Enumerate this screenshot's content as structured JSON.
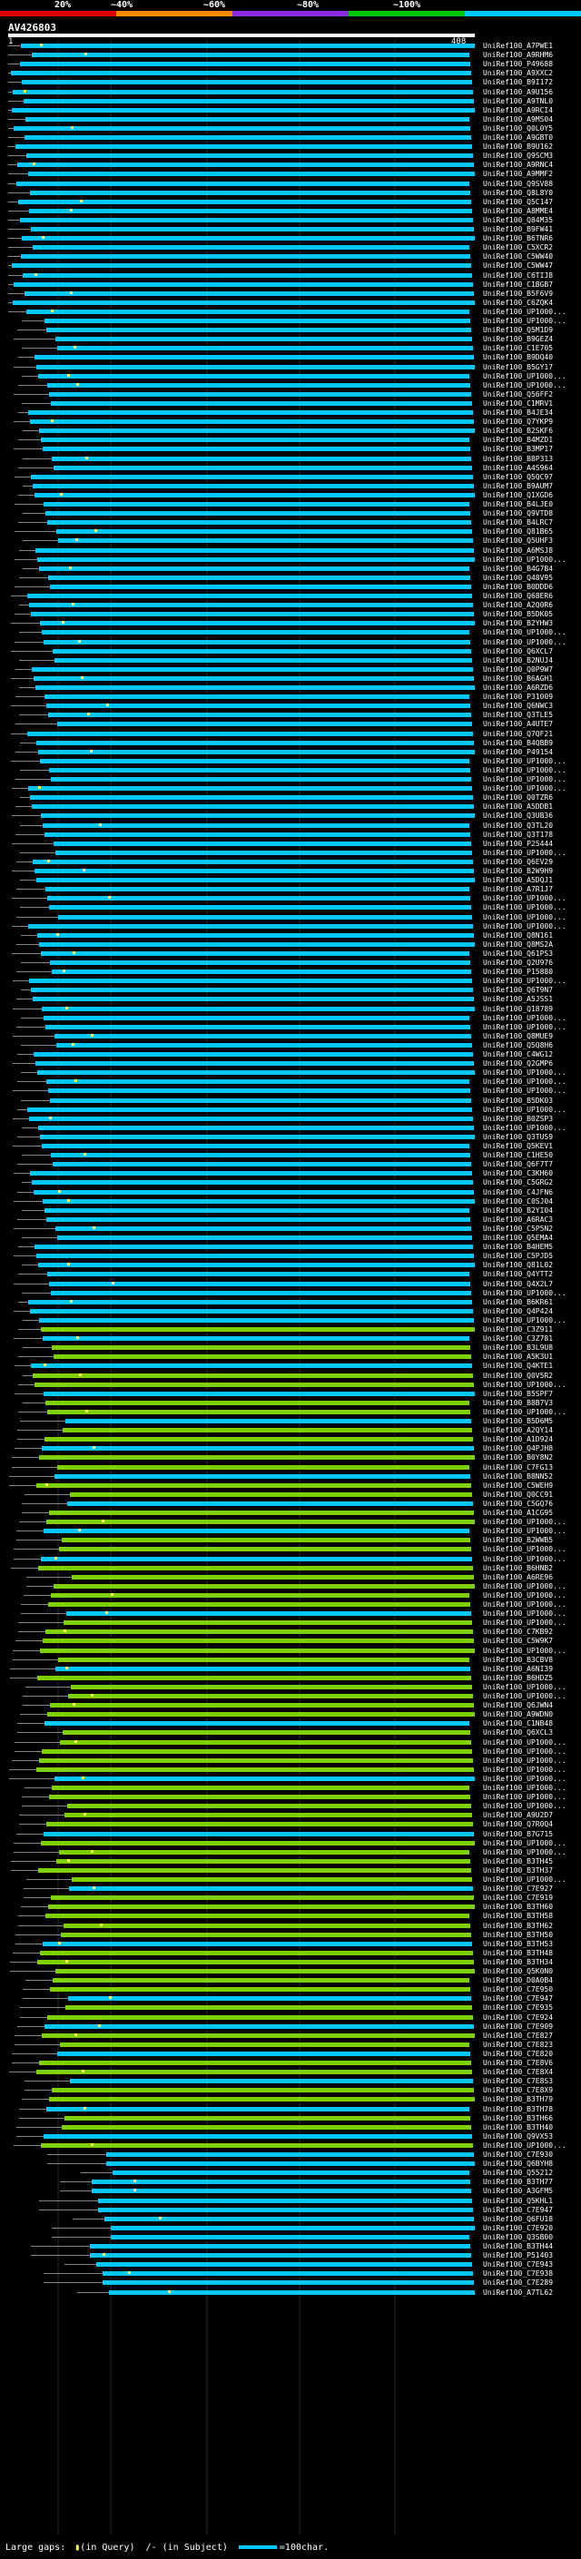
{
  "header": {
    "scale_labels": [
      "20%",
      "~40%",
      "~60%",
      "~80%",
      "~100%"
    ],
    "scale_colors": [
      "#e00000",
      "#ff8c00",
      "#8a2be2",
      "#00c800",
      "#00c8ff"
    ],
    "query_id": "AV426803",
    "query_start": "1",
    "query_end": "408"
  },
  "colors": {
    "cyan": "#00c8ff",
    "green": "#7fd000",
    "line": "#888888",
    "dot": "#ffff66"
  },
  "hits": [
    "UniRef100_A7PWE1",
    "UniRef100_A9RHM6",
    "UniRef100_P49688",
    "UniRef100_A9XXC2",
    "UniRef100_B9I172",
    "UniRef100_A9U156",
    "UniRef100_A9TNL0",
    "UniRef100_A9RCI4",
    "UniRef100_A9MS04",
    "UniRef100_Q0L0Y5",
    "UniRef100_A9GBT0",
    "UniRef100_B9U162",
    "UniRef100_Q9SCM3",
    "UniRef100_A9RNC4",
    "UniRef100_A9MMF2",
    "UniRef100_Q9SV88",
    "UniRef100_Q8L8Y0",
    "UniRef100_Q5C147",
    "UniRef100_A8MME4",
    "UniRef100_Q84M35",
    "UniRef100_B9FW41",
    "UniRef100_B6TNR6",
    "UniRef100_C5XCR2",
    "UniRef100_C5WW40",
    "UniRef100_C5WW47",
    "UniRef100_C6TIJ8",
    "UniRef100_C1BGB7",
    "UniRef100_B5F6V9",
    "UniRef100_C6ZQK4",
    "UniRef100_UP1000...",
    "UniRef100_UP1000...",
    "UniRef100_Q5M1D9",
    "UniRef100_B9GEZ4",
    "UniRef100_C1E705",
    "UniRef100_B9DQ40",
    "UniRef100_B5GY17",
    "UniRef100_UP1000...",
    "UniRef100_UP1000...",
    "UniRef100_Q56FF2",
    "UniRef100_C1MRV1",
    "UniRef100_B4JE34",
    "UniRef100_Q7YKP9",
    "UniRef100_B2SKF6",
    "UniRef100_B4MZD1",
    "UniRef100_B3MP17",
    "UniRef100_B8P313",
    "UniRef100_A4S964",
    "UniRef100_Q5QC97",
    "UniRef100_B9AUM7",
    "UniRef100_Q1XGD6",
    "UniRef100_B4LJE0",
    "UniRef100_Q9VTD8",
    "UniRef100_B4LRC7",
    "UniRef100_Q81B65",
    "UniRef100_Q5UHF3",
    "UniRef100_A6MSJ8",
    "UniRef100_UP1000...",
    "UniRef100_B4G7B4",
    "UniRef100_Q48V95",
    "UniRef100_B0DDD6",
    "UniRef100_Q68ER6",
    "UniRef100_A2Q0R6",
    "UniRef100_B5DK05",
    "UniRef100_B2YHW3",
    "UniRef100_UP1000...",
    "UniRef100_UP1000...",
    "UniRef100_Q6XCL7",
    "UniRef100_B2NUJ4",
    "UniRef100_Q0P9W7",
    "UniRef100_B6AGH1",
    "UniRef100_A6RZD6",
    "UniRef100_P31009",
    "UniRef100_Q6NWC3",
    "UniRef100_Q3TLE5",
    "UniRef100_A4UTE7",
    "UniRef100_Q7QF21",
    "UniRef100_B4QBB9",
    "UniRef100_P49154",
    "UniRef100_UP1000...",
    "UniRef100_UP1000...",
    "UniRef100_UP1000...",
    "UniRef100_UP1000...",
    "UniRef100_Q0TZR6",
    "UniRef100_A5DDB1",
    "UniRef100_Q3UB36",
    "UniRef100_Q3TL20",
    "UniRef100_Q3T178",
    "UniRef100_P25444",
    "UniRef100_UP1000...",
    "UniRef100_Q6EV29",
    "UniRef100_B2W9H9",
    "UniRef100_A5DQJ1",
    "UniRef100_A7R1J7",
    "UniRef100_UP1000...",
    "UniRef100_UP1000...",
    "UniRef100_UP1000...",
    "UniRef100_UP1000...",
    "UniRef100_Q8N161",
    "UniRef100_Q8MS2A",
    "UniRef100_Q61PS3",
    "UniRef100_Q2U976",
    "UniRef100_P15880",
    "UniRef100_UP1000...",
    "UniRef100_Q6T9N7",
    "UniRef100_A5JSS1",
    "UniRef100_Q18789",
    "UniRef100_UP1000...",
    "UniRef100_UP1000...",
    "UniRef100_Q8MUE9",
    "UniRef100_Q5Q8H6",
    "UniRef100_C4WG12",
    "UniRef100_Q2GMP6",
    "UniRef100_UP1000...",
    "UniRef100_UP1000...",
    "UniRef100_UP1000...",
    "UniRef100_B5DK03",
    "UniRef100_UP1000...",
    "UniRef100_B0ZSP3",
    "UniRef100_UP1000...",
    "UniRef100_Q3TUS9",
    "UniRef100_Q5KEV1",
    "UniRef100_C1HE50",
    "UniRef100_Q6F7T7",
    "UniRef100_C3KH60",
    "UniRef100_C5GRG2",
    "UniRef100_C4JFN6",
    "UniRef100_C0SJ04",
    "UniRef100_B2YI04",
    "UniRef100_A6RAC3",
    "UniRef100_C5P5N2",
    "UniRef100_Q5EMA4",
    "UniRef100_B4HEM5",
    "UniRef100_C5PJD5",
    "UniRef100_Q81L02",
    "UniRef100_Q4YTT2",
    "UniRef100_Q4X2L7",
    "UniRef100_UP1000...",
    "UniRef100_B6KR61",
    "UniRef100_Q4P424",
    "UniRef100_UP1000...",
    "UniRef100_C3Z911",
    "UniRef100_C3Z781",
    "UniRef100_B3L9U8",
    "UniRef100_A5K3U1",
    "UniRef100_Q4KTE1",
    "UniRef100_Q0V5R2",
    "UniRef100_UP1000...",
    "UniRef100_B5SPF7",
    "UniRef100_B8B7V3",
    "UniRef100_UP1000...",
    "UniRef100_B5D6M5",
    "UniRef100_A2QY14",
    "UniRef100_A1D924",
    "UniRef100_Q4PJH8",
    "UniRef100_B0Y8N2",
    "UniRef100_C7FG13",
    "UniRef100_B8NN52",
    "UniRef100_C5WEH9",
    "UniRef100_Q0CC91",
    "UniRef100_C5GQ76",
    "UniRef100_A1CG95",
    "UniRef100_UP1000...",
    "UniRef100_UP1000...",
    "UniRef100_B2WWB5",
    "UniRef100_UP1000...",
    "UniRef100_UP1000...",
    "UniRef100_B6HNB2",
    "UniRef100_A6RE96",
    "UniRef100_UP1000...",
    "UniRef100_UP1000...",
    "UniRef100_UP1000...",
    "UniRef100_UP1000...",
    "UniRef100_UP1000...",
    "UniRef100_C7KB92",
    "UniRef100_C5W9K7",
    "UniRef100_UP1000...",
    "UniRef100_B3CBV8",
    "UniRef100_A6NI39",
    "UniRef100_B6HDZ5",
    "UniRef100_UP1000...",
    "UniRef100_UP1000...",
    "UniRef100_Q6JWN4",
    "UniRef100_A9WDN0",
    "UniRef100_C1NB48",
    "UniRef100_Q6XCL3",
    "UniRef100_UP1000...",
    "UniRef100_UP1000...",
    "UniRef100_UP1000...",
    "UniRef100_UP1000...",
    "UniRef100_UP1000...",
    "UniRef100_UP1000...",
    "UniRef100_UP1000...",
    "UniRef100_UP1000...",
    "UniRef100_A9U2D7",
    "UniRef100_Q7R0Q4",
    "UniRef100_B7G715",
    "UniRef100_UP1000...",
    "UniRef100_UP1000...",
    "UniRef100_B3TH45",
    "UniRef100_B3TH37",
    "UniRef100_UP1000...",
    "UniRef100_C7E927",
    "UniRef100_C7E919",
    "UniRef100_B3TH60",
    "UniRef100_B3TH58",
    "UniRef100_B3TH62",
    "UniRef100_B3TH50",
    "UniRef100_B3TH53",
    "UniRef100_B3TH48",
    "UniRef100_B3TH34",
    "UniRef100_Q5K0N0",
    "UniRef100_D0A0B4",
    "UniRef100_C7E950",
    "UniRef100_C7E947",
    "UniRef100_C7E935",
    "UniRef100_C7E924",
    "UniRef100_C7E909",
    "UniRef100_C7E827",
    "UniRef100_C7E823",
    "UniRef100_C7E820",
    "UniRef100_C7E8V6",
    "UniRef100_C7E8X4",
    "UniRef100_C7E8S3",
    "UniRef100_C7E8X9",
    "UniRef100_B3TH79",
    "UniRef100_B3TH78",
    "UniRef100_B3TH66",
    "UniRef100_B3TH40",
    "UniRef100_Q9VX53",
    "UniRef100_UP1000...",
    "UniRef100_C7E930",
    "UniRef100_Q6BYH8",
    "UniRef100_Q55212",
    "UniRef100_B3TH77",
    "UniRef100_A3GFM5",
    "UniRef100_Q5KHL1",
    "UniRef100_C7E947",
    "UniRef100_Q6FU18",
    "UniRef100_C7E920",
    "UniRef100_Q3SB00",
    "UniRef100_B3TH44",
    "UniRef100_P51403",
    "UniRef100_C7E943",
    "UniRef100_C7E938",
    "UniRef100_C7E289",
    "UniRef100_A7TL62"
  ],
  "footer": {
    "large_gaps_label": "Large gaps:",
    "in_query_label": "(in Query)",
    "in_subject_label": "(in Subject)",
    "scale_legend": "=100char."
  }
}
